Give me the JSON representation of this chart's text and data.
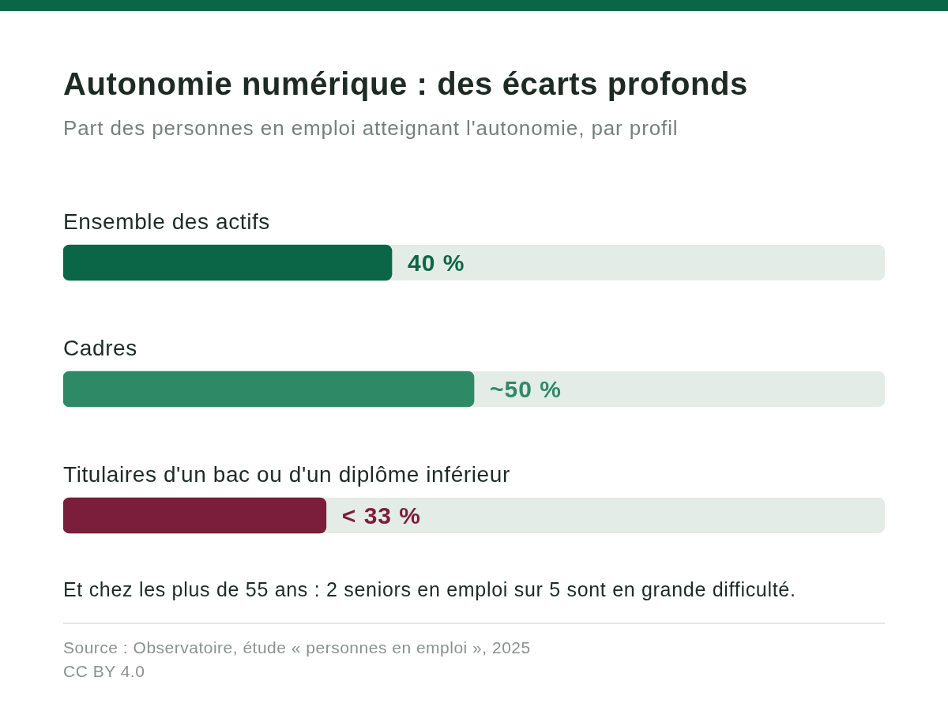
{
  "chart_data": {
    "type": "bar",
    "orientation": "horizontal",
    "title": "Autonomie numérique : des écarts profonds",
    "subtitle": "Part des personnes en emploi atteignant l'autonomie, par profil",
    "categories": [
      "Ensemble des actifs",
      "Cadres",
      "Titulaires d'un bac ou d'un diplôme inférieur"
    ],
    "values": [
      40,
      50,
      32
    ],
    "colors": [
      "#0b6647",
      "#2e8a66",
      "#7b1e3b"
    ],
    "value_labels": [
      "40 %",
      "~50 %",
      "< 33 %"
    ],
    "xlim": [
      0,
      100
    ],
    "tick_labels": "y",
    "annotations": [
      "Et chez les plus de 55 ans : 2 seniors en emploi sur 5 sont en grande difficulté.",
      "Source : Observatoire, étude « personnes en emploi », 2025",
      "CC BY 4.0"
    ]
  }
}
